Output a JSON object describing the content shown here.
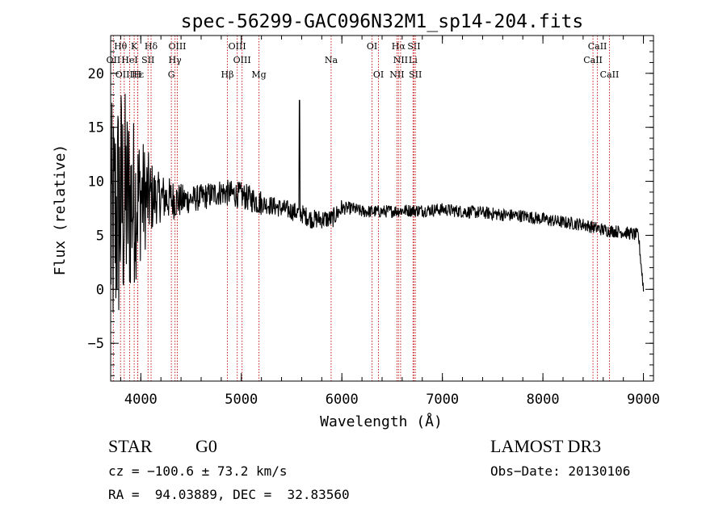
{
  "chart_data": {
    "type": "line",
    "title": "spec-56299-GAC096N32M1_sp14-204.fits",
    "xlabel": "Wavelength (Å)",
    "ylabel": "Flux (relative)",
    "xlim": [
      3700,
      9100
    ],
    "ylim": [
      -8.5,
      23.5
    ],
    "xticks": [
      "4000",
      "5000",
      "6000",
      "7000",
      "8000",
      "9000"
    ],
    "yticks": [
      "-5",
      "0",
      "5",
      "10",
      "15",
      "20"
    ],
    "lines": [
      {
        "label": "Hθ",
        "wl": 3798,
        "row": 0
      },
      {
        "label": "K",
        "wl": 3934,
        "row": 0
      },
      {
        "label": "Hδ",
        "wl": 4102,
        "row": 0
      },
      {
        "label": "OIII",
        "wl": 4363,
        "row": 0
      },
      {
        "label": "OIII",
        "wl": 4959,
        "row": 0
      },
      {
        "label": "OI",
        "wl": 6300,
        "row": 0
      },
      {
        "label": "Hα",
        "wl": 6563,
        "row": 0
      },
      {
        "label": "SII",
        "wl": 6717,
        "row": 0
      },
      {
        "label": "CaII",
        "wl": 8542,
        "row": 0
      },
      {
        "label": "OII",
        "wl": 3727,
        "row": 1
      },
      {
        "label": "HeI",
        "wl": 3889,
        "row": 1
      },
      {
        "label": "SII",
        "wl": 4072,
        "row": 1
      },
      {
        "label": "Hγ",
        "wl": 4340,
        "row": 1
      },
      {
        "label": "OIII",
        "wl": 5007,
        "row": 1
      },
      {
        "label": "Na",
        "wl": 5893,
        "row": 1
      },
      {
        "label": "NII",
        "wl": 6584,
        "row": 1
      },
      {
        "label": "Li",
        "wl": 6708,
        "row": 1
      },
      {
        "label": "CaII",
        "wl": 8498,
        "row": 1
      },
      {
        "label": "OIII",
        "wl": 3835,
        "row": 2
      },
      {
        "label": "Hε",
        "wl": 3970,
        "row": 2
      },
      {
        "label": "H",
        "wl": 3968,
        "row": 2
      },
      {
        "label": "G",
        "wl": 4304,
        "row": 2
      },
      {
        "label": "Hβ",
        "wl": 4861,
        "row": 2
      },
      {
        "label": "Mg",
        "wl": 5175,
        "row": 2
      },
      {
        "label": "OI",
        "wl": 6364,
        "row": 2
      },
      {
        "label": "NII",
        "wl": 6548,
        "row": 2
      },
      {
        "label": "SII",
        "wl": 6731,
        "row": 2
      },
      {
        "label": "CaII",
        "wl": 8662,
        "row": 2
      }
    ],
    "series": [
      {
        "name": "flux",
        "points": [
          [
            3700,
            5
          ],
          [
            3800,
            8
          ],
          [
            3900,
            8
          ],
          [
            4000,
            8.5
          ],
          [
            4200,
            8.5
          ],
          [
            4400,
            8.2
          ],
          [
            4600,
            8.5
          ],
          [
            4800,
            9
          ],
          [
            5000,
            8.7
          ],
          [
            5200,
            8
          ],
          [
            5400,
            7.5
          ],
          [
            5600,
            7
          ],
          [
            5700,
            6.5
          ],
          [
            5800,
            6.5
          ],
          [
            5900,
            6.5
          ],
          [
            6000,
            7.5
          ],
          [
            6100,
            7.5
          ],
          [
            6200,
            7.2
          ],
          [
            6400,
            7.2
          ],
          [
            6600,
            7.3
          ],
          [
            6800,
            7.3
          ],
          [
            7000,
            7.4
          ],
          [
            7200,
            7.2
          ],
          [
            7400,
            7.1
          ],
          [
            7600,
            6.9
          ],
          [
            7800,
            6.8
          ],
          [
            8000,
            6.5
          ],
          [
            8200,
            6.2
          ],
          [
            8400,
            6
          ],
          [
            8600,
            5.5
          ],
          [
            8800,
            5.3
          ],
          [
            8950,
            5
          ],
          [
            9000,
            0
          ]
        ],
        "features": [
          [
            5577,
            17.5
          ]
        ]
      }
    ]
  },
  "info": {
    "object_class": "STAR",
    "subclass": "G0",
    "survey": "LAMOST DR3",
    "cz": "cz = −100.6 ± 73.2 km/s",
    "obs_date": "Obs−Date: 20130106",
    "radec": "RA =  94.03889, DEC =  32.83560"
  }
}
